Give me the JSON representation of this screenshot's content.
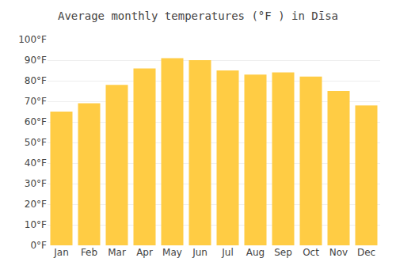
{
  "chart_data": {
    "type": "bar",
    "title": "Average monthly temperatures (°F ) in Dīsa",
    "categories": [
      "Jan",
      "Feb",
      "Mar",
      "Apr",
      "May",
      "Jun",
      "Jul",
      "Aug",
      "Sep",
      "Oct",
      "Nov",
      "Dec"
    ],
    "values": [
      65,
      69,
      78,
      86,
      91,
      90,
      85,
      83,
      84,
      82,
      75,
      68
    ],
    "color": "#FFCC44",
    "ylim": [
      0,
      100
    ],
    "yticks": [
      {
        "value": 0,
        "label": "0°F"
      },
      {
        "value": 10,
        "label": "10°F"
      },
      {
        "value": 20,
        "label": "20°F"
      },
      {
        "value": 30,
        "label": "30°F"
      },
      {
        "value": 40,
        "label": "40°F"
      },
      {
        "value": 50,
        "label": "50°F"
      },
      {
        "value": 60,
        "label": "60°F"
      },
      {
        "value": 70,
        "label": "70°F"
      },
      {
        "value": 80,
        "label": "80°F"
      },
      {
        "value": 90,
        "label": "90°F"
      },
      {
        "value": 100,
        "label": "100°F"
      }
    ],
    "grid": true
  }
}
